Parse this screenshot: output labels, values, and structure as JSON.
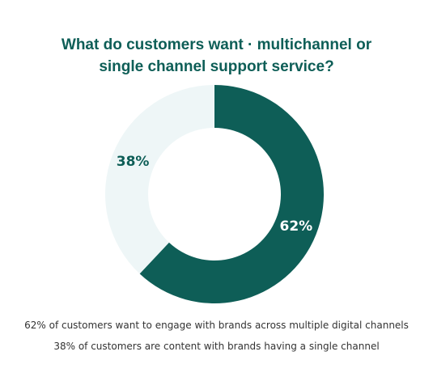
{
  "chart_data": {
    "type": "donut",
    "title": "What do customers want ·  multichannel or single channel support service?",
    "values": [
      62,
      38
    ],
    "value_labels": [
      "62%",
      "38%"
    ],
    "colors": [
      "#0e5e57",
      "#eef6f7"
    ],
    "label_colors": [
      "#ffffff",
      "#0e5e57"
    ],
    "notes": [
      "62% of customers want to engage with brands across multiple digital channels",
      "38% of customers are content with brands having a single channel"
    ]
  }
}
